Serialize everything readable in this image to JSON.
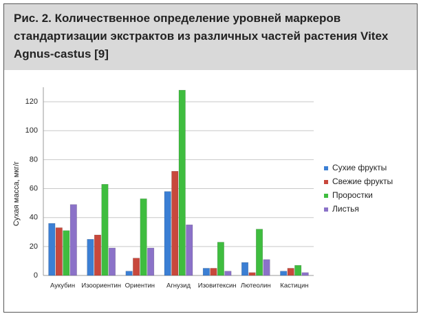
{
  "chart_data": {
    "type": "bar",
    "title": "Рис. 2. Количественное определение уровней маркеров стандартизации экстрактов из различных частей растения Vitex Agnus-castus [9]",
    "y_label": "Сухая масса, мкг/г",
    "categories": [
      "Аукубин",
      "Изоориентин",
      "Ориентин",
      "Агнузид",
      "Изовитексин",
      "Лютеолин",
      "Кастицин"
    ],
    "series": [
      {
        "name": "Сухие фрукты",
        "color": "#3b7fd4",
        "values": [
          36,
          25,
          3,
          58,
          5,
          9,
          3
        ]
      },
      {
        "name": "Свежие фрукты",
        "color": "#c8483c",
        "values": [
          33,
          28,
          12,
          72,
          5,
          2,
          5
        ]
      },
      {
        "name": "Проростки",
        "color": "#3fbd3f",
        "values": [
          31,
          63,
          53,
          128,
          23,
          32,
          7
        ]
      },
      {
        "name": "Листья",
        "color": "#8b72c8",
        "values": [
          49,
          19,
          19,
          35,
          3,
          11,
          2
        ]
      }
    ],
    "ylim": [
      0,
      130
    ],
    "yticks": [
      0,
      20,
      40,
      60,
      80,
      100,
      120
    ],
    "grid": true,
    "legend": "right"
  }
}
